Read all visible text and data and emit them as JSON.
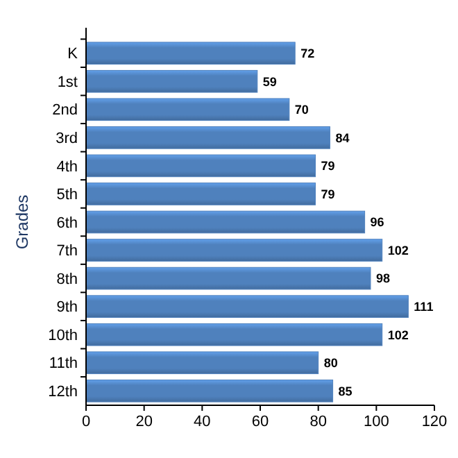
{
  "chart_data": {
    "type": "bar",
    "orientation": "horizontal",
    "ylabel": "Grades",
    "categories": [
      "K",
      "1st",
      "2nd",
      "3rd",
      "4th",
      "5th",
      "6th",
      "7th",
      "8th",
      "9th",
      "10th",
      "11th",
      "12th"
    ],
    "values": [
      72,
      59,
      70,
      84,
      79,
      79,
      96,
      102,
      98,
      111,
      102,
      80,
      85
    ],
    "color": "#4f81bd",
    "xlim": [
      0,
      120
    ],
    "xticks": [
      0,
      20,
      40,
      60,
      80,
      100,
      120
    ],
    "data_labels": true,
    "grid": false
  }
}
